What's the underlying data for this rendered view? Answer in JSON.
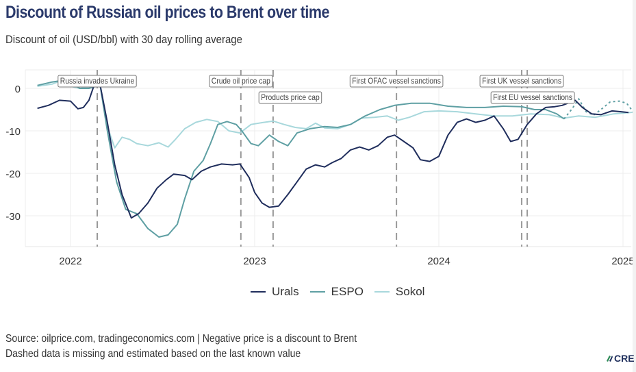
{
  "header": {
    "title": "Discount of Russian oil prices to Brent over time",
    "subtitle": "Discount of oil (USD/bbl) with 30 day rolling average"
  },
  "footer": {
    "source_line": "Source: oilprice.com, tradingeconomics.com | Negative price is a discount to Brent",
    "note_line": "Dashed data is missing and estimated based on the last known value",
    "logo_text": "CRE"
  },
  "chart_data": {
    "type": "line",
    "title": "Discount of Russian oil prices to Brent over time",
    "subtitle": "Discount of oil (USD/bbl) with 30 day rolling average",
    "xlabel": "",
    "ylabel": "",
    "xlim": [
      2021.76,
      2025.07
    ],
    "ylim": [
      -37.5,
      4.3
    ],
    "x_ticks": [
      2022,
      2023,
      2024,
      2025
    ],
    "x_tick_labels": [
      "2022",
      "2023",
      "2024",
      "2025"
    ],
    "y_ticks": [
      0,
      -10,
      -20,
      -30
    ],
    "y_tick_labels": [
      "0",
      "-10",
      "-20",
      "-30"
    ],
    "grid": true,
    "legend_position": "bottom",
    "series": [
      {
        "name": "Urals",
        "color": "#1f2d5c",
        "points": [
          [
            2021.82,
            -4.7
          ],
          [
            2021.88,
            -4.0
          ],
          [
            2021.94,
            -2.8
          ],
          [
            2022.0,
            -3.0
          ],
          [
            2022.04,
            -4.8
          ],
          [
            2022.07,
            -4.5
          ],
          [
            2022.1,
            -2.8
          ],
          [
            2022.13,
            1.0
          ],
          [
            2022.16,
            1.0
          ],
          [
            2022.2,
            -8.0
          ],
          [
            2022.24,
            -18.0
          ],
          [
            2022.28,
            -25.0
          ],
          [
            2022.33,
            -30.5
          ],
          [
            2022.37,
            -29.5
          ],
          [
            2022.42,
            -27.0
          ],
          [
            2022.47,
            -23.5
          ],
          [
            2022.52,
            -21.5
          ],
          [
            2022.56,
            -20.2
          ],
          [
            2022.62,
            -20.5
          ],
          [
            2022.66,
            -21.5
          ],
          [
            2022.71,
            -19.5
          ],
          [
            2022.76,
            -18.5
          ],
          [
            2022.82,
            -17.8
          ],
          [
            2022.88,
            -18.0
          ],
          [
            2022.92,
            -17.8
          ],
          [
            2022.97,
            -21.0
          ],
          [
            2023.0,
            -24.5
          ],
          [
            2023.04,
            -27.0
          ],
          [
            2023.08,
            -28.0
          ],
          [
            2023.13,
            -27.7
          ],
          [
            2023.18,
            -25.0
          ],
          [
            2023.23,
            -22.0
          ],
          [
            2023.28,
            -19.0
          ],
          [
            2023.33,
            -18.0
          ],
          [
            2023.38,
            -18.5
          ],
          [
            2023.42,
            -17.5
          ],
          [
            2023.47,
            -16.5
          ],
          [
            2023.52,
            -14.5
          ],
          [
            2023.57,
            -13.8
          ],
          [
            2023.62,
            -14.5
          ],
          [
            2023.67,
            -13.5
          ],
          [
            2023.72,
            -11.5
          ],
          [
            2023.76,
            -11.0
          ],
          [
            2023.81,
            -12.5
          ],
          [
            2023.86,
            -14.0
          ],
          [
            2023.9,
            -16.8
          ],
          [
            2023.95,
            -17.2
          ],
          [
            2024.0,
            -16.0
          ],
          [
            2024.05,
            -11.0
          ],
          [
            2024.1,
            -8.0
          ],
          [
            2024.15,
            -7.2
          ],
          [
            2024.2,
            -8.0
          ],
          [
            2024.25,
            -7.5
          ],
          [
            2024.3,
            -6.5
          ],
          [
            2024.35,
            -9.5
          ],
          [
            2024.39,
            -12.5
          ],
          [
            2024.43,
            -12.0
          ],
          [
            2024.48,
            -8.5
          ],
          [
            2024.53,
            -6.0
          ],
          [
            2024.58,
            -4.5
          ],
          [
            2024.63,
            -4.3
          ],
          [
            2024.67,
            -4.0
          ],
          [
            2024.7,
            -3.5
          ],
          [
            2024.74,
            -2.8
          ],
          [
            2024.78,
            -4.5
          ],
          [
            2024.83,
            -6.0
          ],
          [
            2024.88,
            -6.2
          ],
          [
            2024.94,
            -5.3
          ],
          [
            2024.99,
            -5.5
          ],
          [
            2025.03,
            -5.7
          ]
        ]
      },
      {
        "name": "ESPO",
        "color": "#5e9fa3",
        "points": [
          [
            2021.82,
            0.7
          ],
          [
            2021.9,
            1.5
          ],
          [
            2021.96,
            1.9
          ],
          [
            2022.0,
            1.5
          ],
          [
            2022.05,
            0.0
          ],
          [
            2022.1,
            0.0
          ],
          [
            2022.14,
            0.5
          ],
          [
            2022.16,
            1.0
          ],
          [
            2022.2,
            -10.0
          ],
          [
            2022.25,
            -22.0
          ],
          [
            2022.3,
            -28.5
          ],
          [
            2022.36,
            -29.5
          ],
          [
            2022.42,
            -33.0
          ],
          [
            2022.48,
            -35.0
          ],
          [
            2022.53,
            -34.5
          ],
          [
            2022.58,
            -32.0
          ],
          [
            2022.62,
            -26.0
          ],
          [
            2022.67,
            -19.5
          ],
          [
            2022.72,
            -17.0
          ],
          [
            2022.76,
            -13.0
          ],
          [
            2022.8,
            -8.5
          ],
          [
            2022.85,
            -7.8
          ],
          [
            2022.9,
            -8.5
          ],
          [
            2022.93,
            -10.0
          ],
          [
            2022.98,
            -13.0
          ],
          [
            2023.02,
            -13.5
          ],
          [
            2023.08,
            -11.0
          ],
          [
            2023.13,
            -12.5
          ],
          [
            2023.18,
            -13.5
          ],
          [
            2023.23,
            -10.5
          ],
          [
            2023.3,
            -9.5
          ],
          [
            2023.38,
            -9.0
          ],
          [
            2023.45,
            -9.2
          ],
          [
            2023.52,
            -8.5
          ],
          [
            2023.6,
            -6.5
          ],
          [
            2023.68,
            -5.0
          ],
          [
            2023.76,
            -4.0
          ],
          [
            2023.85,
            -3.5
          ],
          [
            2023.95,
            -3.5
          ],
          [
            2024.05,
            -4.2
          ],
          [
            2024.15,
            -4.5
          ],
          [
            2024.25,
            -4.5
          ],
          [
            2024.35,
            -4.2
          ],
          [
            2024.45,
            -4.3
          ],
          [
            2024.52,
            -5.0
          ],
          [
            2024.58,
            -5.0
          ],
          [
            2024.64,
            -6.0
          ],
          [
            2024.68,
            -7.2
          ]
        ],
        "estimated_points": [
          [
            2024.68,
            -7.2
          ],
          [
            2024.72,
            -5.0
          ],
          [
            2024.76,
            -2.5
          ],
          [
            2024.8,
            -5.5
          ],
          [
            2024.84,
            -6.3
          ],
          [
            2024.88,
            -5.0
          ],
          [
            2024.93,
            -3.2
          ],
          [
            2024.98,
            -3.0
          ],
          [
            2025.02,
            -3.5
          ],
          [
            2025.06,
            -5.8
          ]
        ]
      },
      {
        "name": "Sokol",
        "color": "#a8d8dc",
        "points": [
          [
            2021.82,
            0.5
          ],
          [
            2021.9,
            1.0
          ],
          [
            2021.96,
            2.0
          ],
          [
            2022.0,
            0.5
          ],
          [
            2022.05,
            0.0
          ],
          [
            2022.1,
            0.3
          ],
          [
            2022.16,
            1.0
          ],
          [
            2022.2,
            -9.0
          ],
          [
            2022.24,
            -14.0
          ],
          [
            2022.28,
            -11.5
          ],
          [
            2022.32,
            -12.0
          ],
          [
            2022.36,
            -13.0
          ],
          [
            2022.42,
            -13.5
          ],
          [
            2022.48,
            -12.8
          ],
          [
            2022.53,
            -13.8
          ],
          [
            2022.57,
            -12.0
          ],
          [
            2022.62,
            -9.5
          ],
          [
            2022.68,
            -8.0
          ],
          [
            2022.74,
            -7.3
          ],
          [
            2022.8,
            -7.8
          ],
          [
            2022.86,
            -10.0
          ],
          [
            2022.92,
            -10.5
          ],
          [
            2022.98,
            -8.5
          ],
          [
            2023.05,
            -8.0
          ],
          [
            2023.1,
            -7.7
          ],
          [
            2023.16,
            -8.5
          ],
          [
            2023.22,
            -9.2
          ],
          [
            2023.28,
            -9.5
          ],
          [
            2023.33,
            -8.2
          ],
          [
            2023.38,
            -9.3
          ],
          [
            2023.45,
            -9.5
          ],
          [
            2023.52,
            -8.5
          ],
          [
            2023.58,
            -7.0
          ],
          [
            2023.65,
            -6.8
          ],
          [
            2023.72,
            -6.5
          ],
          [
            2023.78,
            -7.5
          ],
          [
            2023.84,
            -6.8
          ],
          [
            2023.92,
            -5.5
          ],
          [
            2024.0,
            -5.3
          ],
          [
            2024.1,
            -5.5
          ],
          [
            2024.2,
            -6.0
          ],
          [
            2024.3,
            -6.5
          ],
          [
            2024.4,
            -6.5
          ],
          [
            2024.5,
            -6.0
          ],
          [
            2024.6,
            -6.2
          ],
          [
            2024.68,
            -7.0
          ],
          [
            2024.76,
            -6.5
          ],
          [
            2024.85,
            -6.8
          ],
          [
            2024.95,
            -6.0
          ],
          [
            2025.06,
            -5.6
          ]
        ]
      }
    ],
    "annotations": [
      {
        "label": "Russia invades Ukraine",
        "x": 2022.145,
        "label_row": 1
      },
      {
        "label": "Crude oil price cap",
        "x": 2022.925,
        "label_row": 1
      },
      {
        "label": "Products price cap",
        "x": 2023.1,
        "label_row": 2
      },
      {
        "label": "First OFAC vessel sanctions",
        "x": 2023.77,
        "label_row": 1
      },
      {
        "label": "First UK vessel sanctions",
        "x": 2024.45,
        "label_row": 1
      },
      {
        "label": "First EU vessel sanctions",
        "x": 2024.48,
        "label_row": 2
      }
    ]
  }
}
